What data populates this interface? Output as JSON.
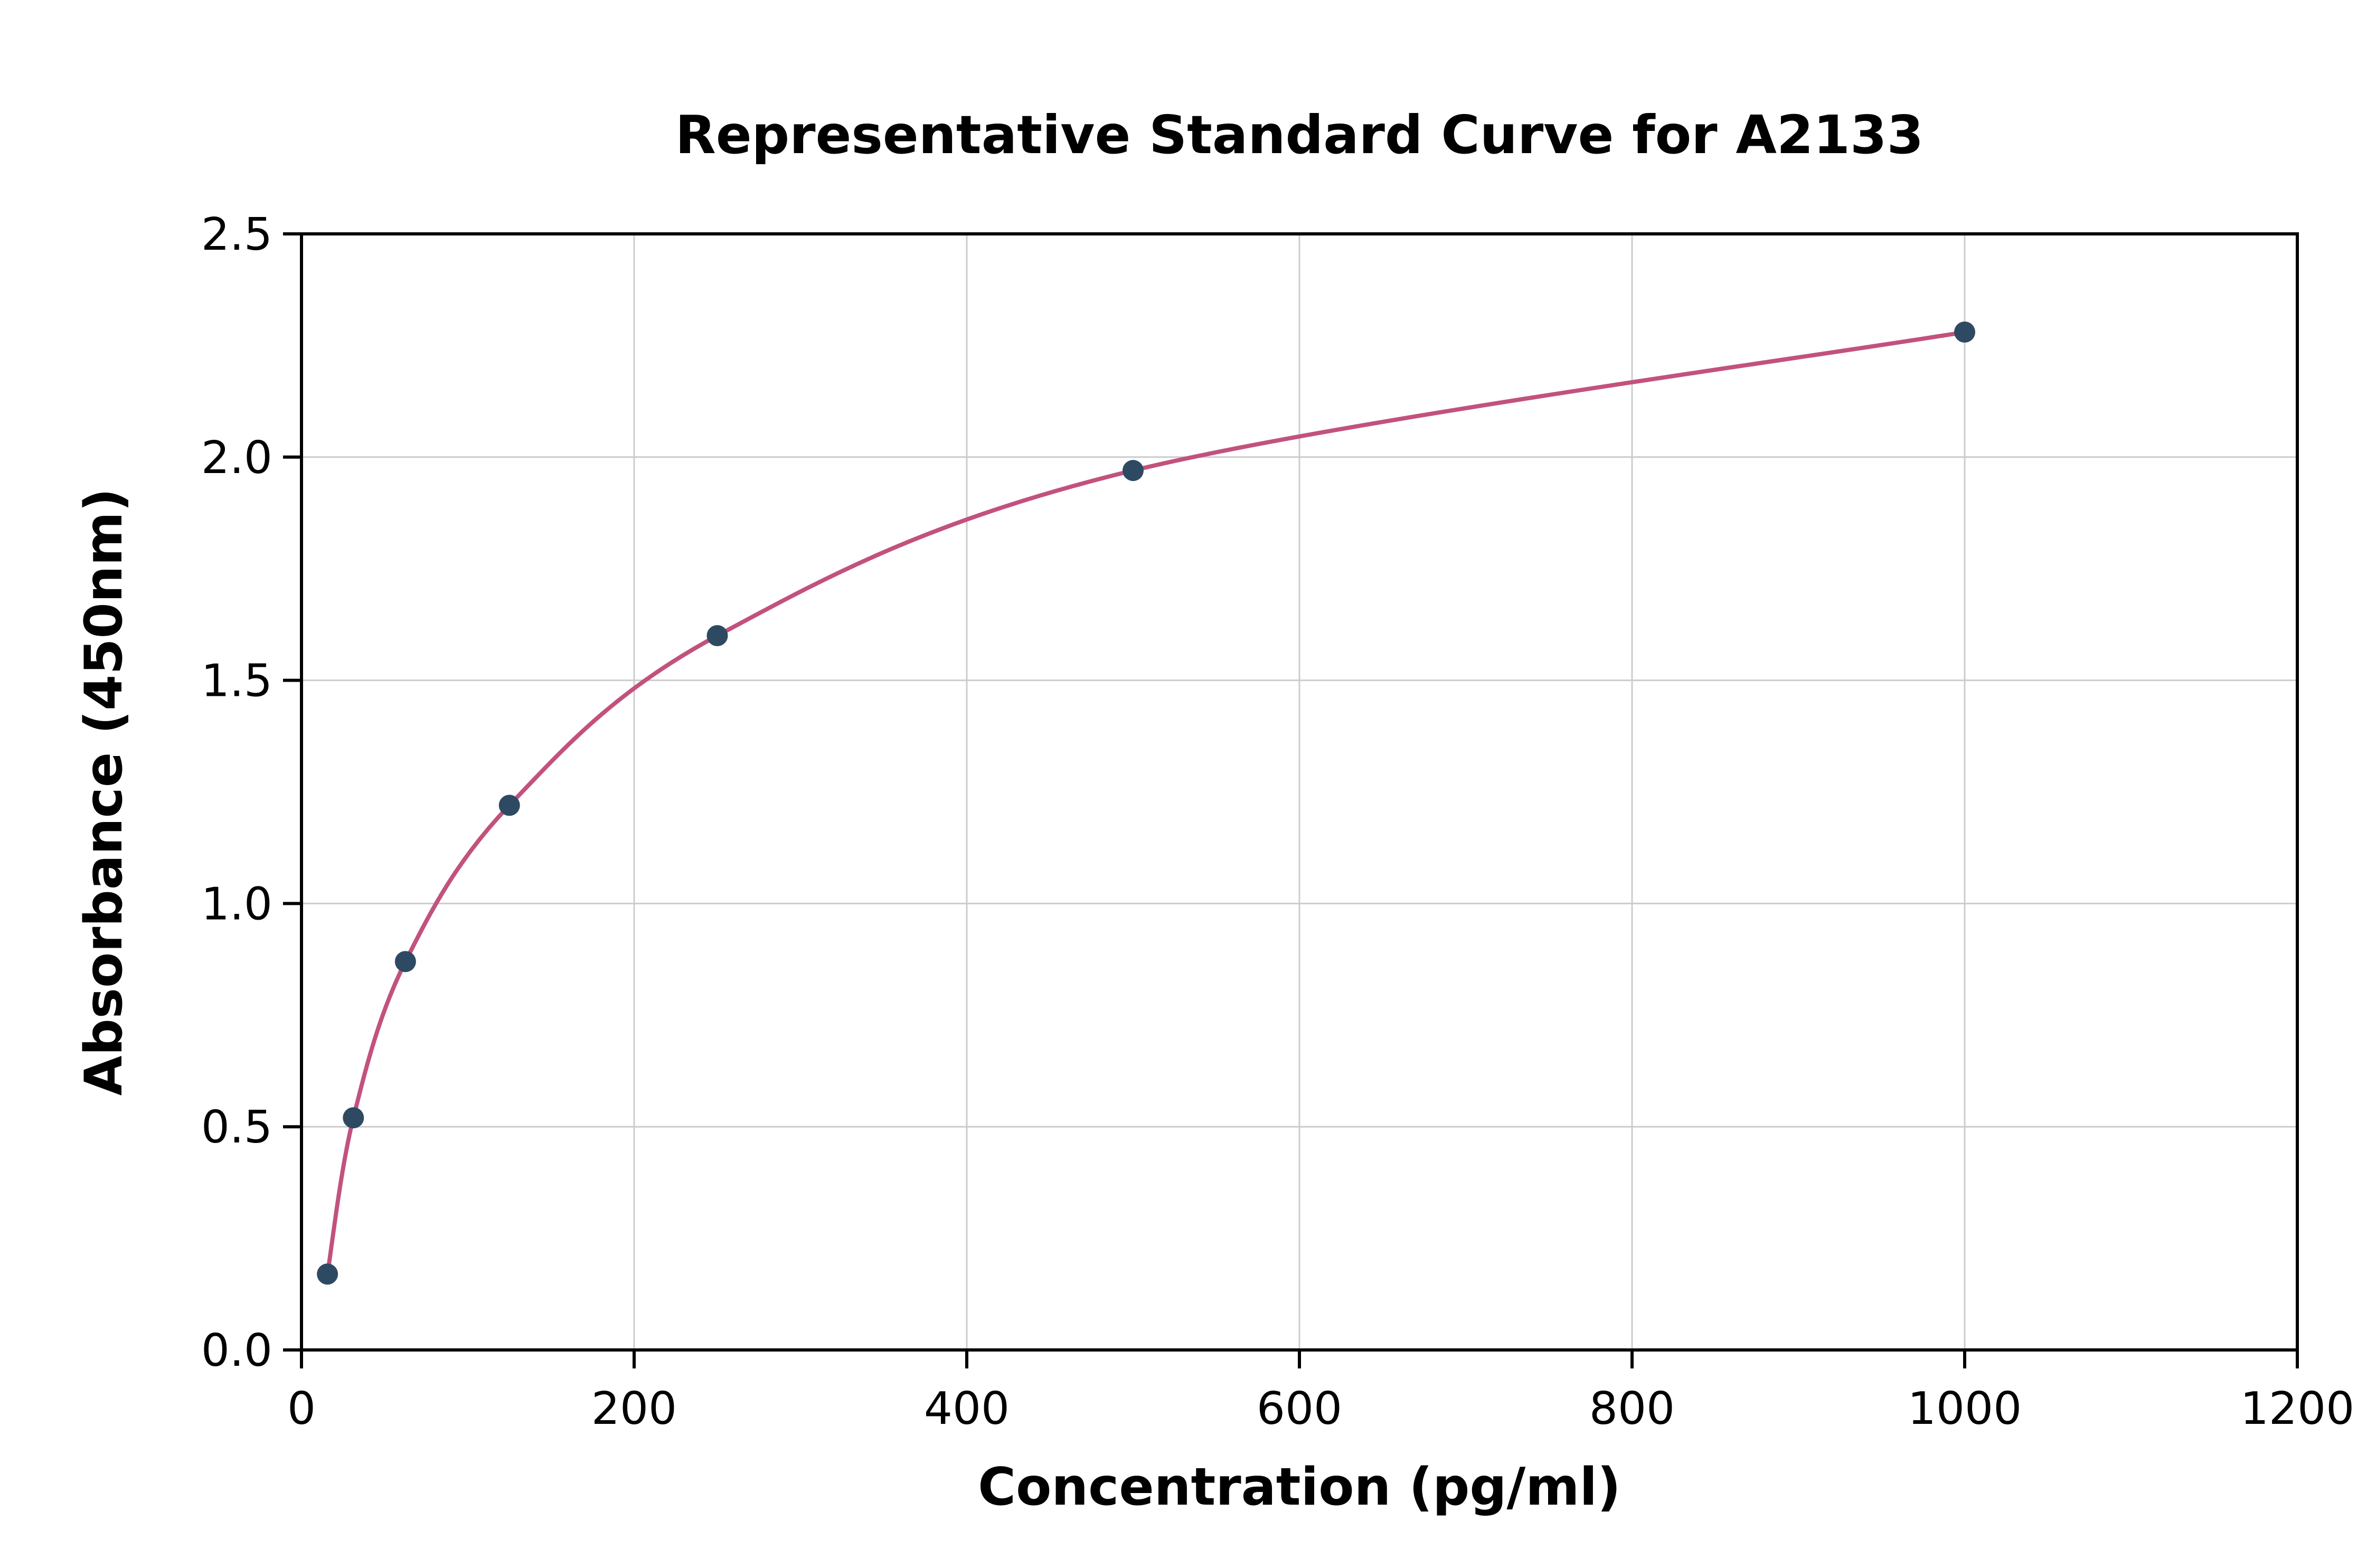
{
  "page": {
    "background_color": "#ffffff"
  },
  "chart_data": {
    "type": "scatter",
    "title": "Representative Standard Curve for A2133",
    "xlabel": "Concentration (pg/ml)",
    "ylabel": "Absorbance (450nm)",
    "x": [
      15.6,
      31.2,
      62.5,
      125,
      250,
      500,
      1000
    ],
    "y": [
      0.17,
      0.52,
      0.87,
      1.22,
      1.6,
      1.97,
      2.28
    ],
    "xlim": [
      0,
      1200
    ],
    "ylim": [
      0,
      2.5
    ],
    "x_ticks": [
      0,
      200,
      400,
      600,
      800,
      1000,
      1200
    ],
    "x_tick_labels": [
      "0",
      "200",
      "400",
      "600",
      "800",
      "1000",
      "1200"
    ],
    "y_ticks": [
      0.0,
      0.5,
      1.0,
      1.5,
      2.0,
      2.5
    ],
    "y_tick_labels": [
      "0.0",
      "0.5",
      "1.0",
      "1.5",
      "2.0",
      "2.5"
    ],
    "grid": true,
    "legend_position": "none",
    "curve_color": "#c2527d",
    "point_color": "#2e4a63",
    "grid_color": "#cccccc",
    "axis_color": "#000000"
  }
}
